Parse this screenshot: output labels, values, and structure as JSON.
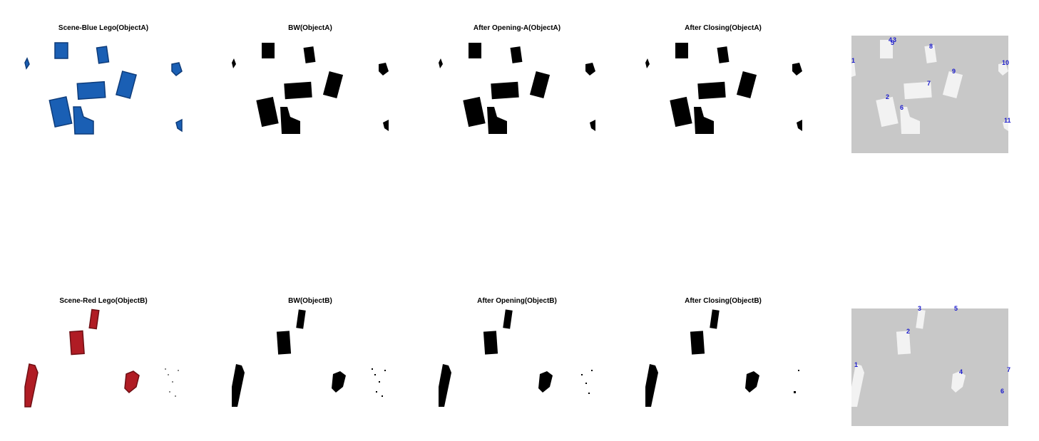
{
  "row_a": {
    "titles": [
      "Scene-Blue Lego(ObjectA)",
      "BW(ObjectA)",
      "After Opening-A(ObjectA)",
      "After Closing(ObjectA)"
    ],
    "object_color": "#1a5fb4",
    "object_dark": "#0e3c7a",
    "labels": [
      "1",
      "2",
      "3",
      "4",
      "5",
      "6",
      "7",
      "8",
      "9",
      "10",
      "11"
    ]
  },
  "row_b": {
    "titles": [
      "Scene-Red Lego(ObjectB)",
      "BW(ObjectB)",
      "After Opening(ObjectB)",
      "After Closing(ObjectB)"
    ],
    "object_color": "#b01c24",
    "object_dark": "#6e0f14",
    "labels": [
      "1",
      "2",
      "3",
      "4",
      "5",
      "6",
      "7"
    ]
  },
  "colors": {
    "label_bg": "#c8c8c8",
    "label_blob": "#f2f2f2",
    "label_text": "#1a1acc",
    "bw_fg": "#000000"
  }
}
